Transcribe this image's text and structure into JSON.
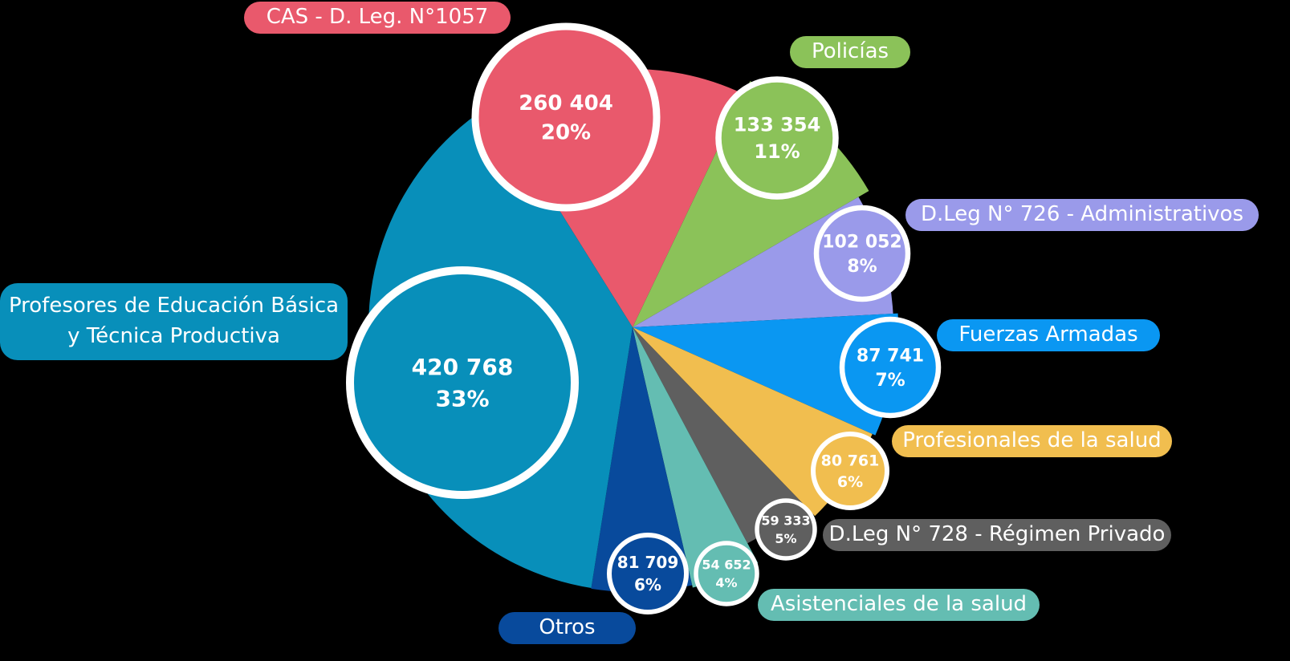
{
  "chart_data": {
    "type": "pie",
    "slices": [
      {
        "key": "cas",
        "label": "CAS - D. Leg. N°1057",
        "value_text": "260 404",
        "value": 260404,
        "percent_text": "20%",
        "percent": 20,
        "color": "#E9596C"
      },
      {
        "key": "policias",
        "label": "Policías",
        "value_text": "133 354",
        "value": 133354,
        "percent_text": "11%",
        "percent": 11,
        "color": "#8BC259"
      },
      {
        "key": "dleg726",
        "label": "D.Leg N° 726 - Administrativos",
        "value_text": "102 052",
        "value": 102052,
        "percent_text": "8%",
        "percent": 8,
        "color": "#9A9AEA"
      },
      {
        "key": "ffaa",
        "label": "Fuerzas Armadas",
        "value_text": "87 741",
        "value": 87741,
        "percent_text": "7%",
        "percent": 7,
        "color": "#0A97F2"
      },
      {
        "key": "profsalud",
        "label": "Profesionales de la salud",
        "value_text": "80 761",
        "value": 80761,
        "percent_text": "6%",
        "percent": 6,
        "color": "#F1BE4F"
      },
      {
        "key": "dleg728",
        "label": "D.Leg N° 728 - Régimen Privado",
        "value_text": "59 333",
        "value": 59333,
        "percent_text": "5%",
        "percent": 5,
        "color": "#5F5F5F"
      },
      {
        "key": "asistsalud",
        "label": "Asistenciales de la salud",
        "value_text": "54 652",
        "value": 54652,
        "percent_text": "4%",
        "percent": 4,
        "color": "#64BDB2"
      },
      {
        "key": "otros",
        "label": "Otros",
        "value_text": "81 709",
        "value": 81709,
        "percent_text": "6%",
        "percent": 6,
        "color": "#084A9C"
      },
      {
        "key": "profesores",
        "label": "Profesores de Educación Básica y Técnica Productiva",
        "label_lines": [
          "Profesores de Educación Básica",
          "y Técnica Productiva"
        ],
        "value_text": "420 768",
        "value": 420768,
        "percent_text": "33%",
        "percent": 33,
        "color": "#088FBA"
      }
    ],
    "legend": "labels around the pie"
  }
}
